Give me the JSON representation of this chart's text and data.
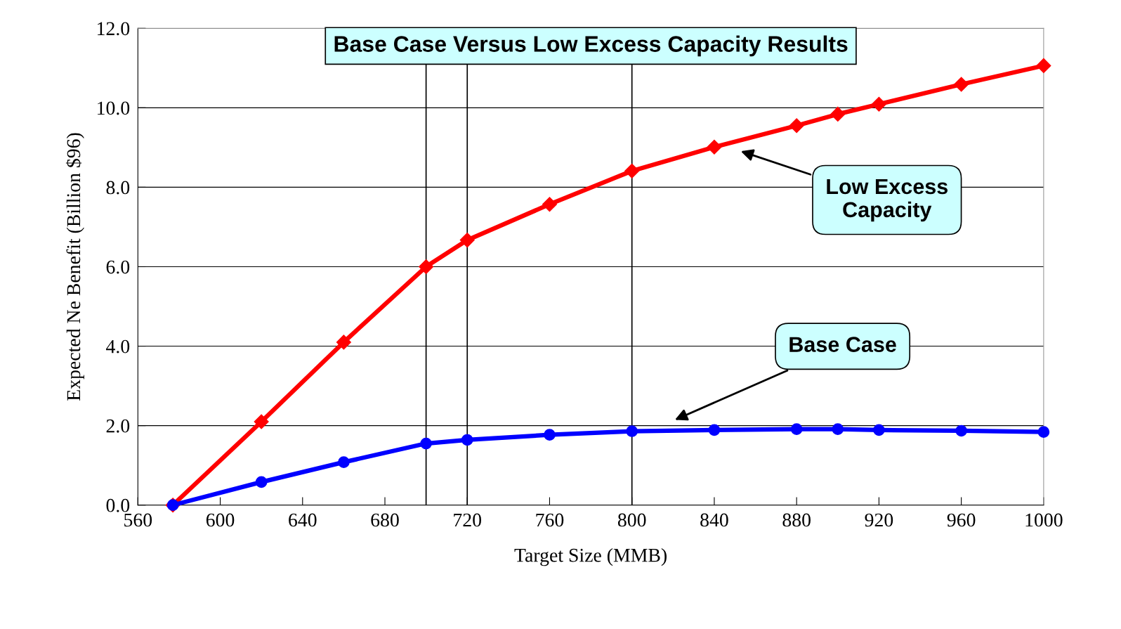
{
  "chart_data": {
    "type": "line",
    "title": "Base Case Versus Low Excess Capacity Results",
    "xlabel": "Target Size (MMB)",
    "ylabel": "Expected Ne Benefit (Billion $96)",
    "x": [
      577,
      620,
      660,
      700,
      720,
      760,
      800,
      840,
      880,
      900,
      920,
      960,
      1000
    ],
    "series": [
      {
        "color": "#ff0000",
        "marker": "diamond",
        "values": [
          0.0,
          2.1,
          4.1,
          6.0,
          6.67,
          7.57,
          8.41,
          9.01,
          9.55,
          9.84,
          10.09,
          10.59,
          11.06
        ]
      },
      {
        "color": "#0000ff",
        "marker": "circle",
        "values": [
          0.0,
          0.58,
          1.08,
          1.55,
          1.64,
          1.77,
          1.86,
          1.89,
          1.91,
          1.91,
          1.89,
          1.87,
          1.84
        ]
      }
    ],
    "xlim": [
      560,
      1000
    ],
    "xticks": [
      560,
      600,
      640,
      680,
      720,
      760,
      800,
      840,
      880,
      920,
      960,
      1000
    ],
    "ylim": [
      0,
      12
    ],
    "yticks": [
      {
        "value": 0,
        "label": "0.0"
      },
      {
        "value": 2,
        "label": "2.0"
      },
      {
        "value": 4,
        "label": "4.0"
      },
      {
        "value": 6,
        "label": "6.0"
      },
      {
        "value": 8,
        "label": "8.0"
      },
      {
        "value": 10,
        "label": "10.0"
      },
      {
        "value": 12,
        "label": "12.0"
      }
    ],
    "grid": "y",
    "ref_lines": [
      {
        "axis": "x",
        "value": 700,
        "color": "#000000"
      },
      {
        "axis": "x",
        "value": 720,
        "color": "#000000"
      },
      {
        "axis": "x",
        "value": 800,
        "color": "#000000"
      }
    ],
    "annotations": [
      "Low Excess\nCapacity",
      "Base Case"
    ],
    "line_style": "solid"
  }
}
